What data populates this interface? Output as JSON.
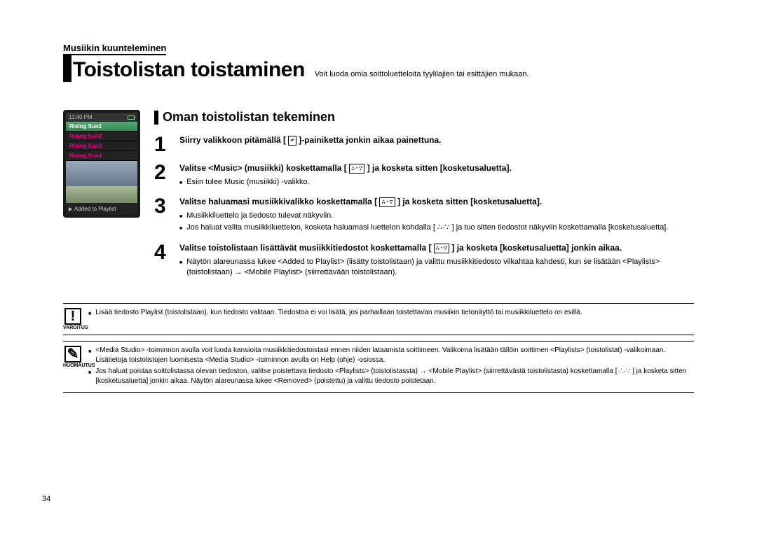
{
  "breadcrumb": "Musiikin kuunteleminen",
  "title": "Toistolistan toistaminen",
  "subtitle": "Voit luoda omia soittoluetteloita tyylilajien tai esittäjien mukaan.",
  "section_title": "Oman toistolistan tekeminen",
  "device": {
    "time": "11:40 PM",
    "rows": [
      "Rising Sun1",
      "Rising Sun2",
      "Rising Sun3",
      "Rising Sun4"
    ],
    "added": "Added to Playlist"
  },
  "icons": {
    "back": "↶",
    "updown": "∴·∵"
  },
  "steps": [
    {
      "n": "1",
      "bold_a": "Siirry valikkoon pitämällä [ ",
      "icon": "back",
      "bold_b": " ]-painiketta jonkin aikaa painettuna.",
      "bullets": []
    },
    {
      "n": "2",
      "bold_a": "Valitse <Music> (musiikki) koskettamalla [ ",
      "icon": "updown",
      "bold_b": " ]  ja kosketa sitten [kosketusaluetta].",
      "bullets": [
        "Esiin tulee Music (musiikki) -valikko."
      ]
    },
    {
      "n": "3",
      "bold_a": "Valitse haluamasi musiikkivalikko koskettamalla  [ ",
      "icon": "updown",
      "bold_b": " ] ja kosketa sitten [kosketusaluetta].",
      "bullets": [
        "Musiikkiluettelo ja tiedosto tulevat näkyviin.",
        "Jos haluat valita musiikkiluettelon, kosketa haluamasi luettelon kohdalla [ ∴·∵ ] ja tuo sitten tiedostot näkyviin koskettamalla [kosketusaluetta]."
      ]
    },
    {
      "n": "4",
      "bold_a": "Valitse toistolistaan lisättävät musiikkitiedostot koskettamalla [ ",
      "icon": "updown",
      "bold_b": " ]  ja kosketa [kosketusaluetta] jonkin aikaa.",
      "bullets": [
        "Näytön alareunassa lukee <Added to Playlist> (lisätty toistolistaan) ja valittu musiikkitiedosto vilkahtaa kahdesti, kun se lisätään <Playlists> (toistolistaan)  → <Mobile Playlist> (siirrettävään toistolistaan)."
      ]
    }
  ],
  "notes": [
    {
      "sym": "!",
      "label": "VAROITUS",
      "bullets": [
        "Lisää tiedosto Playlist (toistolistaan), kun tiedosto valitaan. Tiedostoa ei voi lisätä, jos parhaillaan toistettavan musiikin tietonäyttö tai musiikkiluettelo on esillä."
      ]
    },
    {
      "sym": "✎",
      "label": "HUOMAUTUS",
      "bullets": [
        "<Media Studio> -toiminnon avulla voit luoda kansioita musiikkitiedostoistasi ennen niiden lataamista soittimeen. Valikoima lisätään tällöin soittimen <Playlists> (toistolistat) -valikoimaan. Lisätietoja toistolistojen luomisesta <Media Studio> -toiminnon avulla on Help (ohje) -osiossa.",
        "Jos haluat poistaa soittolistassa olevan tiedoston, valitse poistettava tiedosto <Playlists> (toistolistassta)  → <Mobile Playlist> (siirrettävästä toistolistasta) koskettamalla [ ∴·∵ ] ja kosketa sitten [kosketusaluetta] jonkin aikaa. Näytön alareunassa lukee <Removed> (poistettu) ja valittu tiedosto poistetaan."
      ]
    }
  ],
  "page_number": "34"
}
